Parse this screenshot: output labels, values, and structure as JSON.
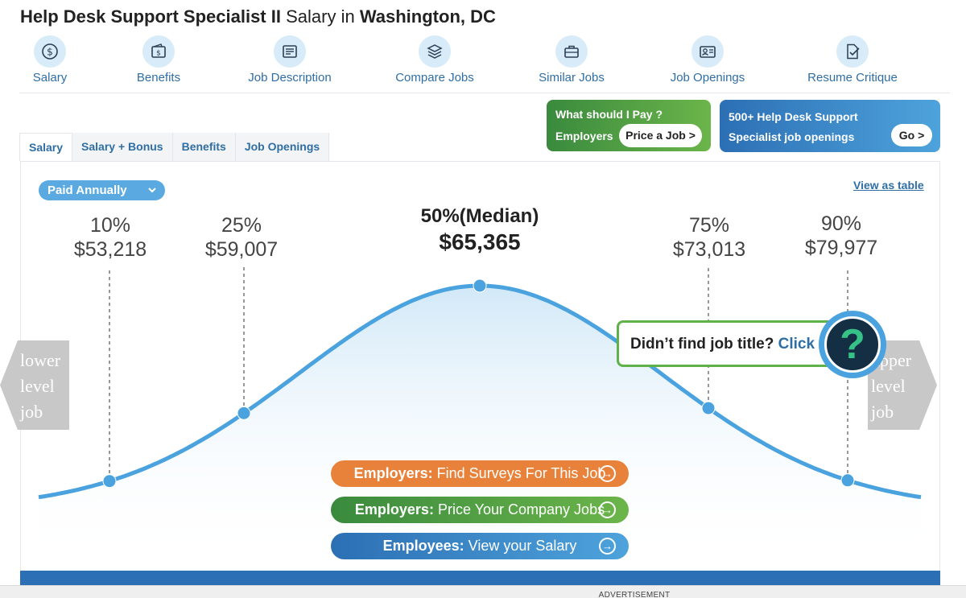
{
  "header": {
    "title_job": "Help Desk Support Specialist II",
    "title_mid": "Salary in",
    "title_location": "Washington, DC"
  },
  "nav": {
    "items": [
      {
        "label": "Salary",
        "icon": "dollar-coin-icon"
      },
      {
        "label": "Benefits",
        "icon": "wallet-icon"
      },
      {
        "label": "Job Description",
        "icon": "document-icon"
      },
      {
        "label": "Compare Jobs",
        "icon": "layers-icon"
      },
      {
        "label": "Similar Jobs",
        "icon": "briefcase-icon"
      },
      {
        "label": "Job Openings",
        "icon": "id-card-icon"
      },
      {
        "label": "Resume Critique",
        "icon": "resume-check-icon"
      }
    ]
  },
  "tabs": [
    "Salary",
    "Salary + Bonus",
    "Benefits",
    "Job Openings"
  ],
  "promo_employers": {
    "question": "What should I Pay ?",
    "label": "Employers",
    "button": "Price a Job >"
  },
  "promo_openings": {
    "text": "500+ Help Desk Support Specialist job openings",
    "button": "Go >"
  },
  "pay_period": "Paid Annually",
  "view_as_table": "View as table",
  "percentiles": [
    {
      "pct": "10%",
      "value": "$53,218"
    },
    {
      "pct": "25%",
      "value": "$59,007"
    },
    {
      "pct": "50%(Median)",
      "value": "$65,365"
    },
    {
      "pct": "75%",
      "value": "$73,013"
    },
    {
      "pct": "90%",
      "value": "$79,977"
    }
  ],
  "chart_data": {
    "type": "line",
    "x": [
      53218,
      59007,
      65365,
      73013,
      79977
    ],
    "percentile_labels": [
      "10%",
      "25%",
      "50%(Median)",
      "75%",
      "90%"
    ]
  },
  "nav_lower": {
    "line1": "lower",
    "line2": "level",
    "line3": "job"
  },
  "nav_upper": {
    "line1": "upper",
    "line2": "level",
    "line3": "job"
  },
  "help_prompt": {
    "text": "Didn’t find job title?",
    "link": "Click",
    "symbol": "?"
  },
  "ctas": [
    {
      "strong": "Employers:",
      "text": "Find Surveys For This Job",
      "color": "#e8823a"
    },
    {
      "strong": "Employers:",
      "text": "Price Your Company Jobs",
      "color": "#3a8a3e"
    },
    {
      "strong": "Employees:",
      "text": "View your Salary",
      "color": "#2c6fb4"
    }
  ],
  "ad_label": "ADVERTISEMENT",
  "colors": {
    "accent_blue": "#2f6ea5",
    "curve": "#4aa3df",
    "green": "#5fb14a",
    "orange": "#e8823a"
  }
}
